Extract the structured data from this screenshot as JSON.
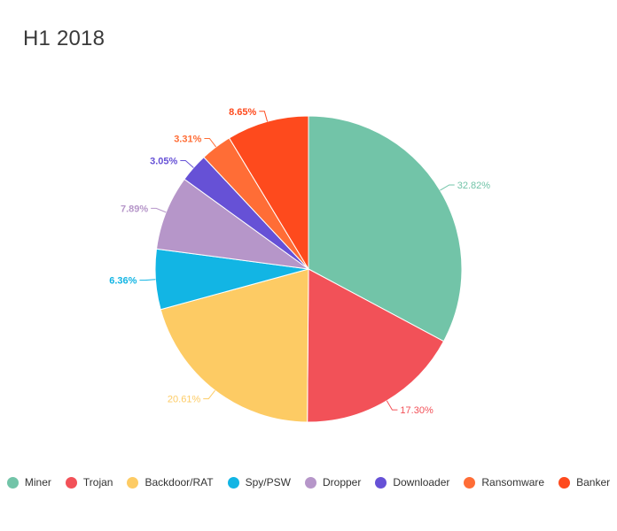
{
  "chart_data": {
    "type": "pie",
    "title": "H1 2018",
    "categories": [
      "Miner",
      "Trojan",
      "Backdoor/RAT",
      "Spy/PSW",
      "Dropper",
      "Downloader",
      "Ransomware",
      "Banker"
    ],
    "values": [
      32.82,
      17.3,
      20.61,
      6.36,
      7.89,
      3.05,
      3.31,
      8.65
    ],
    "labels": [
      "32.82%",
      "17.30%",
      "20.61%",
      "6.36%",
      "7.89%",
      "3.05%",
      "3.31%",
      "8.65%"
    ],
    "colors": [
      "#72c4a8",
      "#f25158",
      "#fdcb64",
      "#12b5e4",
      "#b696c9",
      "#6651d6",
      "#ff6d36",
      "#fe4a1d"
    ],
    "legend_position": "bottom"
  }
}
